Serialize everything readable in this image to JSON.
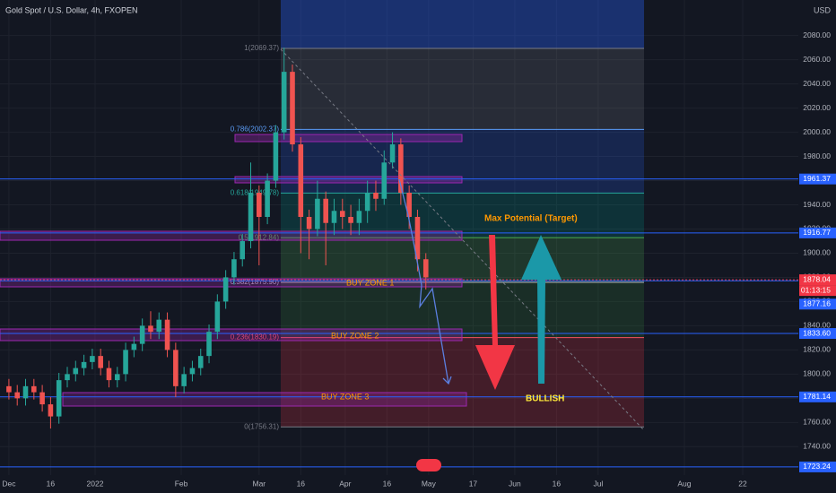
{
  "chart_data": {
    "type": "candlestick",
    "title": "Gold Spot / U.S. Dollar, 4h, FXOPEN",
    "currency": "USD",
    "x": [
      0,
      3,
      6,
      9,
      12,
      15,
      18,
      21,
      24,
      27,
      30,
      33,
      36,
      39,
      42,
      45,
      48,
      51,
      54,
      57,
      60,
      63,
      66,
      69,
      72,
      75,
      78,
      81,
      84,
      87,
      90,
      93,
      96,
      99,
      102,
      105,
      108,
      111,
      114,
      117,
      120,
      123,
      126,
      129,
      132,
      135,
      138,
      141,
      144,
      147,
      150
    ],
    "open": [
      1790,
      1785,
      1780,
      1790,
      1785,
      1775,
      1765,
      1795,
      1800,
      1805,
      1810,
      1815,
      1805,
      1795,
      1800,
      1820,
      1825,
      1840,
      1835,
      1845,
      1820,
      1790,
      1800,
      1805,
      1815,
      1835,
      1860,
      1880,
      1895,
      1910,
      1950,
      1930,
      1960,
      2000,
      2050,
      1990,
      1930,
      1920,
      1945,
      1925,
      1935,
      1930,
      1925,
      1935,
      1950,
      1945,
      1975,
      1990,
      1950,
      1930,
      1895
    ],
    "high": [
      1796,
      1791,
      1796,
      1796,
      1791,
      1781,
      1801,
      1806,
      1811,
      1816,
      1821,
      1821,
      1811,
      1806,
      1826,
      1831,
      1846,
      1852,
      1851,
      1851,
      1826,
      1806,
      1811,
      1821,
      1841,
      1866,
      1886,
      1901,
      1916,
      1975,
      1956,
      1966,
      2006,
      2070,
      2056,
      1996,
      1936,
      1960,
      1951,
      1945,
      1945,
      1940,
      1945,
      1960,
      1960,
      1985,
      2000,
      1995,
      1956,
      1936,
      1900
    ],
    "low": [
      1779,
      1774,
      1774,
      1779,
      1769,
      1755,
      1759,
      1789,
      1794,
      1799,
      1804,
      1799,
      1789,
      1789,
      1794,
      1814,
      1819,
      1829,
      1829,
      1814,
      1781,
      1784,
      1794,
      1799,
      1809,
      1829,
      1854,
      1874,
      1889,
      1904,
      1890,
      1924,
      1954,
      1994,
      1984,
      1900,
      1895,
      1914,
      1890,
      1915,
      1920,
      1915,
      1915,
      1925,
      1935,
      1940,
      1970,
      1940,
      1920,
      1885,
      1870
    ],
    "close": [
      1785,
      1780,
      1790,
      1785,
      1775,
      1765,
      1795,
      1800,
      1805,
      1810,
      1815,
      1805,
      1795,
      1800,
      1820,
      1825,
      1840,
      1835,
      1845,
      1820,
      1790,
      1800,
      1805,
      1815,
      1835,
      1860,
      1880,
      1895,
      1910,
      1950,
      1930,
      1960,
      2000,
      2050,
      1990,
      1930,
      1920,
      1945,
      1925,
      1935,
      1930,
      1925,
      1935,
      1950,
      1945,
      1975,
      1990,
      1950,
      1930,
      1895,
      1880
    ],
    "up_color": "#26a69a",
    "down_color": "#ef5350",
    "xlim": [
      -3.2,
      284
    ],
    "ylim": [
      1716.5,
      2109.4
    ],
    "xticks": [
      {
        "value": 0,
        "label": "Dec"
      },
      {
        "value": 15,
        "label": "16"
      },
      {
        "value": 31,
        "label": "2022"
      },
      {
        "value": 62,
        "label": "Feb"
      },
      {
        "value": 90,
        "label": "Mar"
      },
      {
        "value": 105,
        "label": "16"
      },
      {
        "value": 121,
        "label": "Apr"
      },
      {
        "value": 136,
        "label": "16"
      },
      {
        "value": 151,
        "label": "May"
      },
      {
        "value": 167,
        "label": "17"
      },
      {
        "value": 182,
        "label": "Jun"
      },
      {
        "value": 197,
        "label": "16"
      },
      {
        "value": 212,
        "label": "Jul"
      },
      {
        "value": 243,
        "label": "Aug"
      },
      {
        "value": 264,
        "label": "22"
      }
    ],
    "yticks": [
      {
        "value": 1740,
        "label": "1740.00"
      },
      {
        "value": 1760,
        "label": "1760.00"
      },
      {
        "value": 1780,
        "label": "1780.00"
      },
      {
        "value": 1800,
        "label": "1800.00"
      },
      {
        "value": 1820,
        "label": "1820.00"
      },
      {
        "value": 1840,
        "label": "1840.00"
      },
      {
        "value": 1860,
        "label": "1860.00"
      },
      {
        "value": 1880,
        "label": "1880.00"
      },
      {
        "value": 1900,
        "label": "1900.00"
      },
      {
        "value": 1920,
        "label": "1920.00"
      },
      {
        "value": 1940,
        "label": "1940.00"
      },
      {
        "value": 1960,
        "label": "1960.00"
      },
      {
        "value": 1980,
        "label": "1980.00"
      },
      {
        "value": 2000,
        "label": "2000.00"
      },
      {
        "value": 2020,
        "label": "2020.00"
      },
      {
        "value": 2040,
        "label": "2040.00"
      },
      {
        "value": 2060,
        "label": "2060.00"
      },
      {
        "value": 2080,
        "label": "2080.00"
      }
    ],
    "grid": true,
    "price_lines": [
      {
        "value": 1878.04,
        "color": "#f23645"
      },
      {
        "value": 1961.37,
        "color": "#2962ff"
      },
      {
        "value": 1916.77,
        "color": "#2962ff"
      },
      {
        "value": 1877.16,
        "color": "#2962ff"
      },
      {
        "value": 1833.6,
        "label": "1833.60",
        "color": "#2962ff"
      },
      {
        "value": 1781.14,
        "color": "#2962ff"
      },
      {
        "value": 1723.24,
        "color": "#2962ff"
      }
    ],
    "countdown": "01:13:15",
    "fib_levels": [
      {
        "value": 2069.37,
        "label": "1(2069.37)",
        "color": "#787b86"
      },
      {
        "value": 2002.37,
        "label": "0.786(2002.37)",
        "color": "#5b9cf6"
      },
      {
        "value": 1949.78,
        "label": "0.618(1949.78)",
        "color": "#26a69a"
      },
      {
        "value": 1912.84,
        "label": "0.5(1912.84)",
        "color": "#4caf50"
      },
      {
        "value": 1875.9,
        "label": "0.382(1875.90)",
        "color": "#b2b5be"
      },
      {
        "value": 1830.19,
        "label": "0.236(1830.19)",
        "color": "#f7525f"
      },
      {
        "value": 1756.31,
        "label": "0(1756.31)",
        "color": "#787b86"
      }
    ],
    "annotations": {
      "max_potential": "Max Potential (Target)",
      "buy_zone_1": "BUY ZONE 1",
      "buy_zone_2": "BUY ZONE 2",
      "buy_zone_3": "BUY ZONE 3",
      "bullish": "BULLISH"
    }
  }
}
